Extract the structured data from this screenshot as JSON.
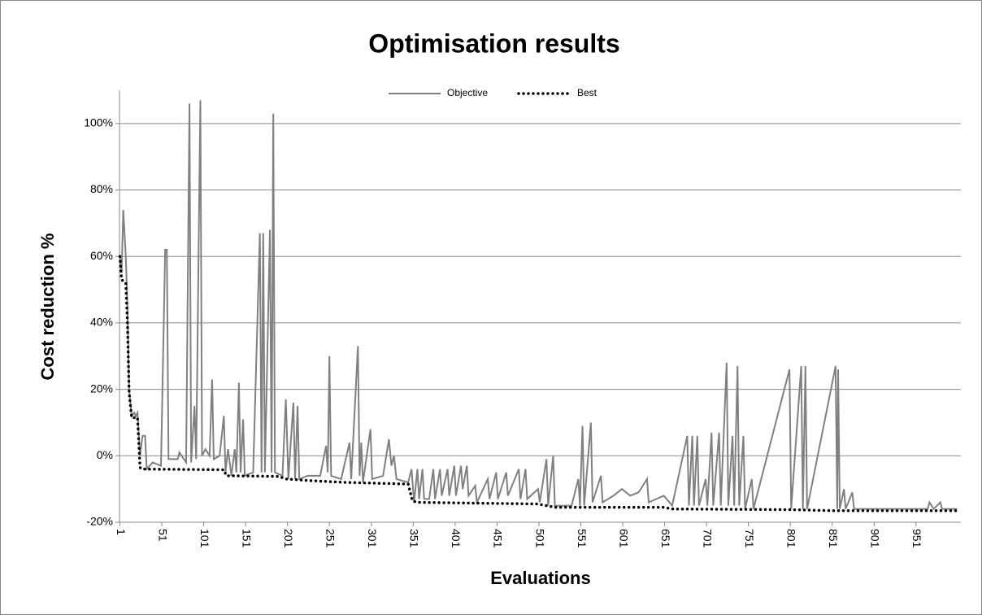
{
  "chart_data": {
    "type": "line",
    "title": "Optimisation results",
    "xlabel": "Evaluations",
    "ylabel": "Cost reduction %",
    "xlim": [
      0.5,
      1004.5
    ],
    "xticks": [
      1,
      51,
      101,
      151,
      201,
      251,
      301,
      351,
      401,
      451,
      501,
      551,
      601,
      651,
      701,
      751,
      801,
      851,
      901,
      951
    ],
    "ylim": [
      -20,
      110
    ],
    "yticks": [
      {
        "value": -20,
        "label": "-20%"
      },
      {
        "value": 0,
        "label": "0%"
      },
      {
        "value": 20,
        "label": "20%"
      },
      {
        "value": 40,
        "label": "40%"
      },
      {
        "value": 60,
        "label": "60%"
      },
      {
        "value": 80,
        "label": "80%"
      },
      {
        "value": 100,
        "label": "100%"
      }
    ],
    "grid": true,
    "legend": "top",
    "series": [
      {
        "name": "Objective",
        "color": "#808080",
        "style": "solid",
        "x": [
          1,
          3,
          5,
          8,
          10,
          12,
          15,
          18,
          20,
          22,
          25,
          28,
          31,
          33,
          40,
          50,
          55,
          57,
          59,
          70,
          72,
          80,
          84,
          86,
          90,
          92,
          97,
          99,
          103,
          108,
          111,
          113,
          120,
          125,
          127,
          130,
          134,
          138,
          140,
          143,
          145,
          148,
          150,
          160,
          168,
          170,
          172,
          174,
          180,
          182,
          184,
          186,
          195,
          199,
          202,
          208,
          210,
          213,
          215,
          225,
          240,
          247,
          249,
          251,
          253,
          265,
          275,
          277,
          285,
          287,
          289,
          291,
          300,
          302,
          315,
          322,
          325,
          328,
          331,
          345,
          349,
          352,
          356,
          358,
          362,
          364,
          370,
          375,
          377,
          383,
          385,
          392,
          394,
          400,
          402,
          408,
          410,
          415,
          417,
          425,
          427,
          440,
          442,
          450,
          452,
          462,
          464,
          477,
          479,
          485,
          487,
          500,
          502,
          510,
          512,
          518,
          520,
          540,
          548,
          550,
          553,
          555,
          563,
          565,
          575,
          577,
          590,
          600,
          610,
          620,
          630,
          632,
          650,
          660,
          678,
          680,
          684,
          686,
          690,
          692,
          700,
          702,
          707,
          709,
          716,
          718,
          725,
          727,
          732,
          734,
          738,
          740,
          745,
          747,
          755,
          757,
          800,
          802,
          814,
          816,
          819,
          821,
          855,
          857,
          858,
          860,
          865,
          867,
          875,
          877,
          900,
          965,
          967,
          972,
          980,
          982,
          1000
        ],
        "values": [
          60,
          55,
          74,
          60,
          45,
          20,
          12,
          13,
          12,
          13,
          0,
          6,
          6,
          -4,
          -2,
          -3,
          62,
          62,
          -1,
          -1,
          1,
          -2,
          106,
          -2,
          15,
          -1,
          107,
          0,
          2,
          0,
          23,
          -1,
          0,
          12,
          -5,
          2,
          -6,
          2,
          -5,
          22,
          -5,
          11,
          -6,
          -5,
          67,
          -5,
          67,
          -5,
          68,
          -5,
          103,
          -5,
          -6,
          17,
          -7,
          16,
          -7,
          15,
          -7,
          -6,
          -6,
          3,
          -5,
          30,
          -6,
          -7,
          4,
          -7,
          33,
          -6,
          4,
          -8,
          8,
          -7,
          -6,
          5,
          -3,
          0,
          -7,
          -8,
          -4,
          -14,
          -4,
          -13,
          -4,
          -13,
          -13,
          -4,
          -13,
          -4,
          -12,
          -4,
          -12,
          -3,
          -12,
          -3,
          -10,
          -3,
          -12,
          -9,
          -14,
          -7,
          -13,
          -5,
          -13,
          -5,
          -12,
          -4,
          -13,
          -4,
          -13,
          -10,
          -14,
          -1,
          -15,
          0,
          -15,
          -15,
          -7,
          -15,
          9,
          -15,
          10,
          -14,
          -6,
          -14,
          -12,
          -10,
          -12,
          -11,
          -7,
          -14,
          -12,
          -15,
          6,
          -15,
          6,
          -15,
          6,
          -15,
          -7,
          -15,
          7,
          -15,
          7,
          -15,
          28,
          -15,
          6,
          -15,
          27,
          -15,
          6,
          -16,
          -7,
          -16,
          26,
          -16,
          27,
          -16,
          27,
          -16,
          27,
          -16,
          26,
          -16,
          -10,
          -16,
          -11,
          -16,
          -16,
          -16,
          -14,
          -16,
          -14,
          -16,
          -16
        ]
      },
      {
        "name": "Best",
        "color": "#000000",
        "style": "dotted",
        "x": [
          1,
          3,
          8,
          10,
          12,
          15,
          22,
          25,
          27,
          125,
          128,
          190,
          200,
          230,
          270,
          345,
          350,
          355,
          500,
          520,
          650,
          660,
          800,
          850,
          1000
        ],
        "values": [
          60,
          53,
          52,
          40,
          19,
          11.5,
          11.5,
          -3.5,
          -4,
          -4.2,
          -6,
          -6.2,
          -7,
          -7.5,
          -8,
          -8.5,
          -13.5,
          -14,
          -14.5,
          -15.5,
          -15.5,
          -16,
          -16.2,
          -16.5,
          -16.5
        ]
      }
    ]
  }
}
